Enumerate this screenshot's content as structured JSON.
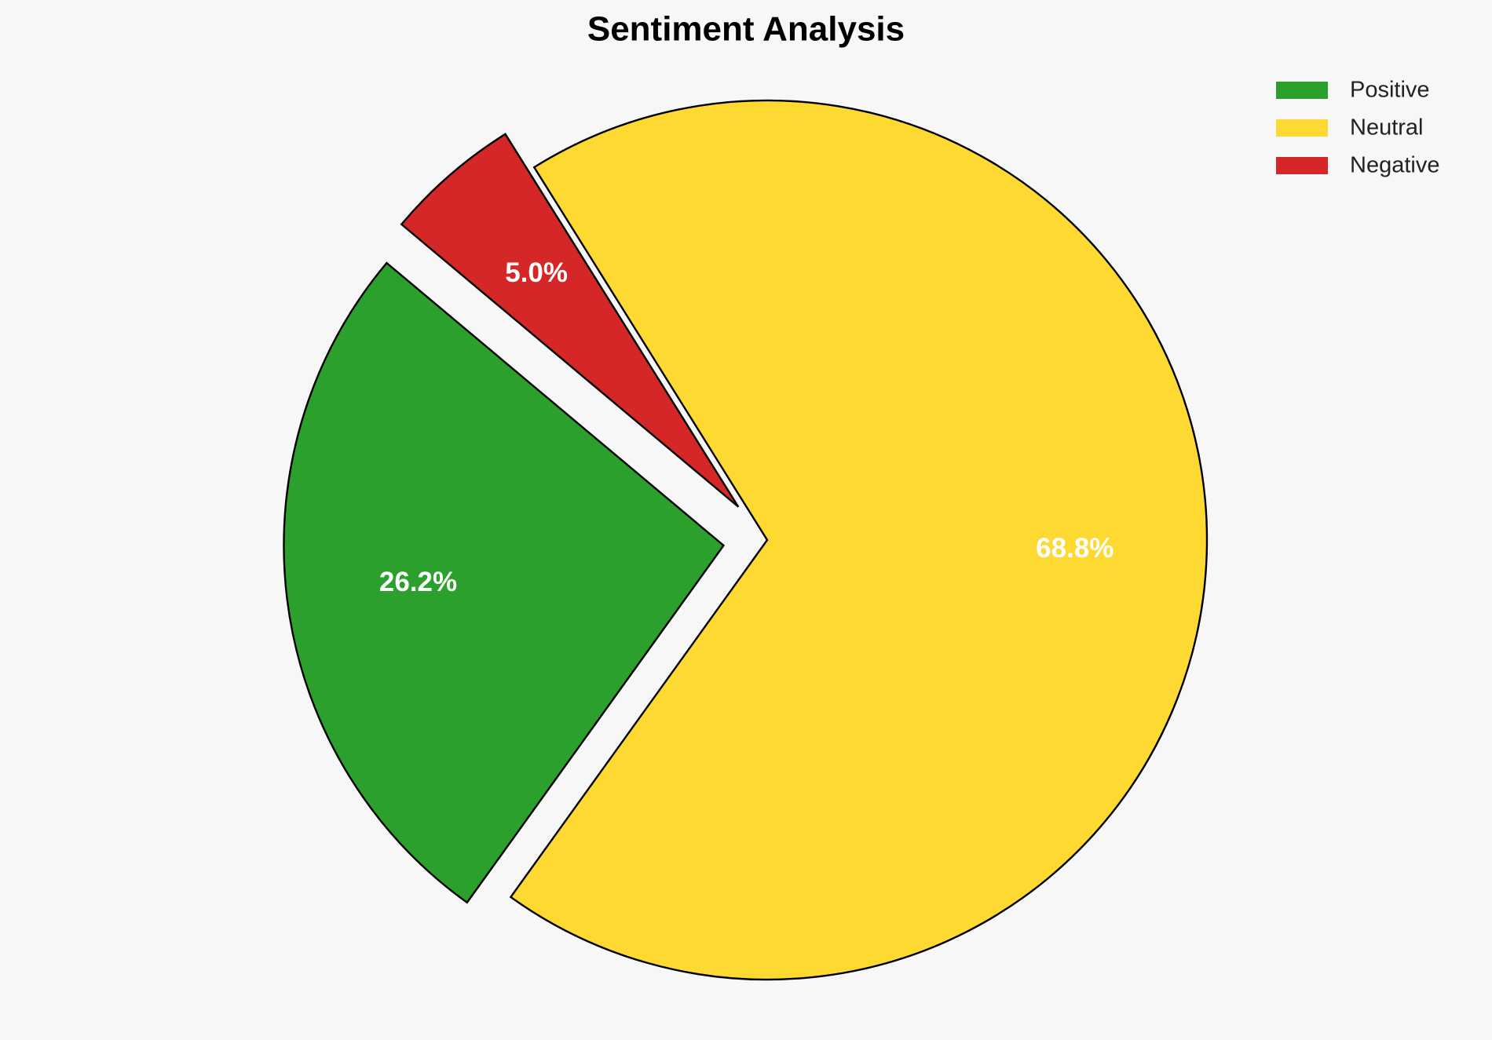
{
  "chart_data": {
    "type": "pie",
    "title": "Sentiment Analysis",
    "categories": [
      "Positive",
      "Neutral",
      "Negative"
    ],
    "values": [
      26.2,
      68.8,
      5.0
    ],
    "value_labels": [
      "26.2%",
      "68.8%",
      "5.0%"
    ],
    "colors": [
      "#2ca02c",
      "#fdd931",
      "#d62728"
    ],
    "explode": [
      0.1,
      0,
      0.1
    ],
    "startangle": 140,
    "legend": "upper right"
  }
}
